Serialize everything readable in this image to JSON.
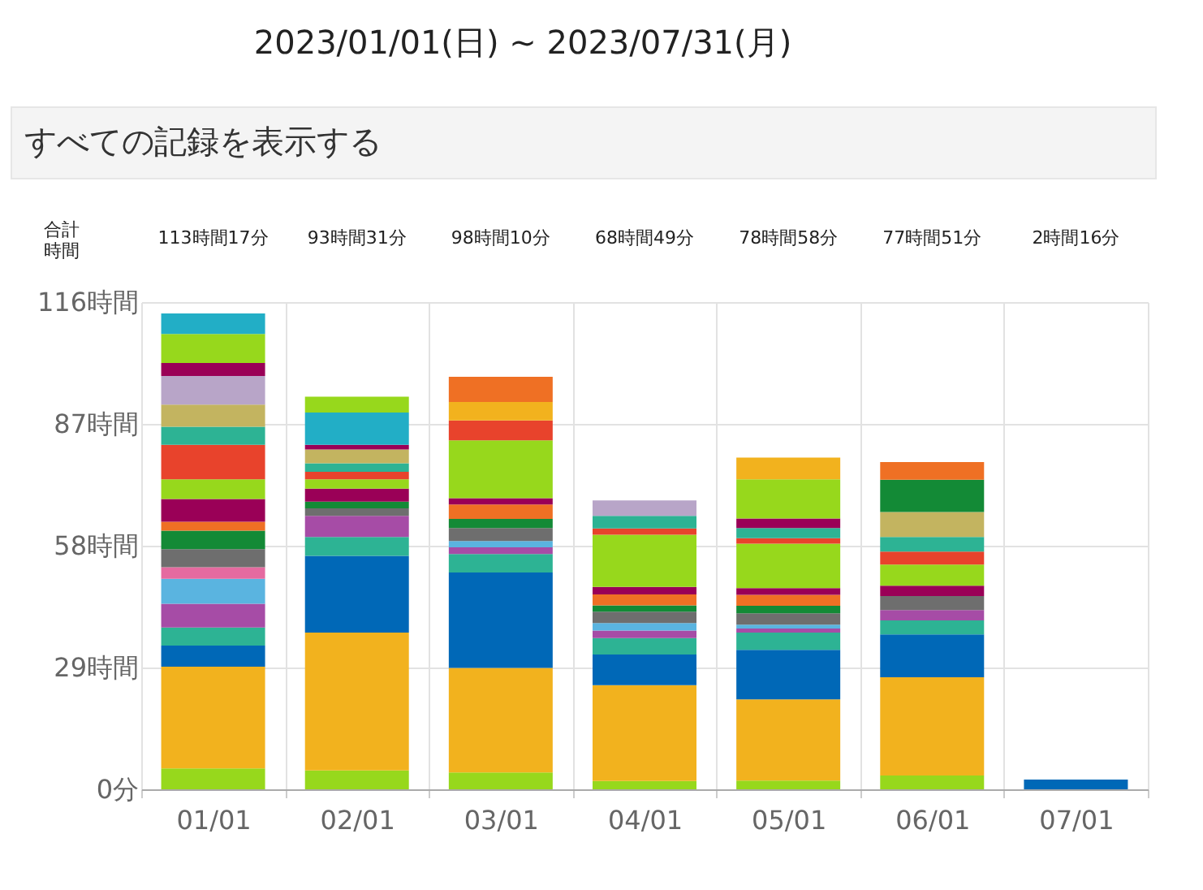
{
  "chart_data": {
    "type": "bar",
    "stacked": true,
    "title": "2023/01/01(日) ~ 2023/07/31(月)",
    "subtitle": "すべての記録を表示する",
    "categories": [
      "01/01",
      "02/01",
      "03/01",
      "04/01",
      "05/01",
      "06/01",
      "07/01"
    ],
    "ylim": [
      0,
      116
    ],
    "yticks": [
      {
        "value": 0,
        "label": "0分"
      },
      {
        "value": 29,
        "label": "29時間"
      },
      {
        "value": 58,
        "label": "58時間"
      },
      {
        "value": 87,
        "label": "87時間"
      },
      {
        "value": 116,
        "label": "116時間"
      }
    ],
    "grid": true,
    "annotations": [
      "合計時間",
      "113時間17分",
      "93時間31分",
      "98時間10分",
      "68時間49分",
      "78時間58分",
      "77時間51分",
      "2時間16分"
    ],
    "series": [
      {
        "color": "#97d81c",
        "values": [
          5,
          4.5,
          4.0,
          2.0,
          2.1,
          3.3,
          null
        ]
      },
      {
        "color": "#f2b21e",
        "values": [
          24.2,
          32.8,
          24.9,
          22.8,
          19.3,
          23.4,
          null
        ]
      },
      {
        "color": "#0068b7",
        "values": [
          5,
          18.3,
          22.7,
          7.3,
          11.8,
          10.2,
          2.3
        ]
      },
      {
        "color": "#2db394",
        "values": [
          4.3,
          4.5,
          4.4,
          3.9,
          4.1,
          3.3,
          null
        ]
      },
      {
        "color": "#a64ca6",
        "values": [
          5.7,
          5.0,
          1.6,
          1.8,
          1.0,
          2.5,
          null
        ]
      },
      {
        "color": "#5ab4e0",
        "values": [
          5.9,
          null,
          1.5,
          1.8,
          0.9,
          null,
          null
        ]
      },
      {
        "color": "#e56aa0",
        "values": [
          2.8,
          null,
          null,
          null,
          null,
          null,
          null
        ]
      },
      {
        "color": "#6e6e6e",
        "values": [
          4.3,
          1.8,
          3.1,
          2.7,
          2.7,
          3.3,
          null
        ]
      },
      {
        "color": "#138a36",
        "values": [
          4.4,
          1.6,
          2.2,
          1.5,
          1.8,
          null,
          null
        ]
      },
      {
        "color": "#ef7024",
        "values": [
          2.1,
          null,
          3.4,
          2.6,
          2.6,
          null,
          null
        ]
      },
      {
        "color": "#9a0057",
        "values": [
          5.4,
          3.1,
          1.5,
          1.8,
          1.6,
          2.5,
          null
        ]
      },
      {
        "color": "#97d81c",
        "values": [
          4.7,
          2.2,
          13.8,
          12.4,
          10.6,
          5.0,
          null
        ]
      },
      {
        "color": "#e8432c",
        "values": [
          8.2,
          1.8,
          4.7,
          1.5,
          1.3,
          3.1,
          null
        ]
      },
      {
        "color": "#2db394",
        "values": [
          4.3,
          2.0,
          null,
          3.0,
          2.4,
          3.5,
          null
        ]
      },
      {
        "color": "#c3b460",
        "values": [
          5.3,
          3.3,
          null,
          null,
          null,
          5.9,
          null
        ]
      },
      {
        "color": "#b8a5c8",
        "values": [
          6.8,
          null,
          null,
          3.7,
          null,
          null,
          null
        ]
      },
      {
        "color": "#9a0057",
        "values": [
          3.1,
          1.1,
          null,
          null,
          2.3,
          null,
          null
        ]
      },
      {
        "color": "#97d81c",
        "values": [
          6.9,
          null,
          null,
          null,
          9.3,
          null,
          null
        ]
      },
      {
        "color": "#22aec6",
        "values": [
          4.9,
          7.7,
          null,
          null,
          null,
          null,
          null
        ]
      },
      {
        "color": "#97d81c",
        "values": [
          null,
          3.8,
          null,
          null,
          null,
          null,
          null
        ]
      },
      {
        "color": "#f2b21e",
        "values": [
          null,
          null,
          4.4,
          null,
          5.2,
          null,
          null
        ]
      },
      {
        "color": "#138a36",
        "values": [
          null,
          null,
          null,
          null,
          null,
          7.7,
          null
        ]
      },
      {
        "color": "#ef7024",
        "values": [
          null,
          null,
          6.0,
          null,
          null,
          4.2,
          null
        ]
      }
    ]
  }
}
